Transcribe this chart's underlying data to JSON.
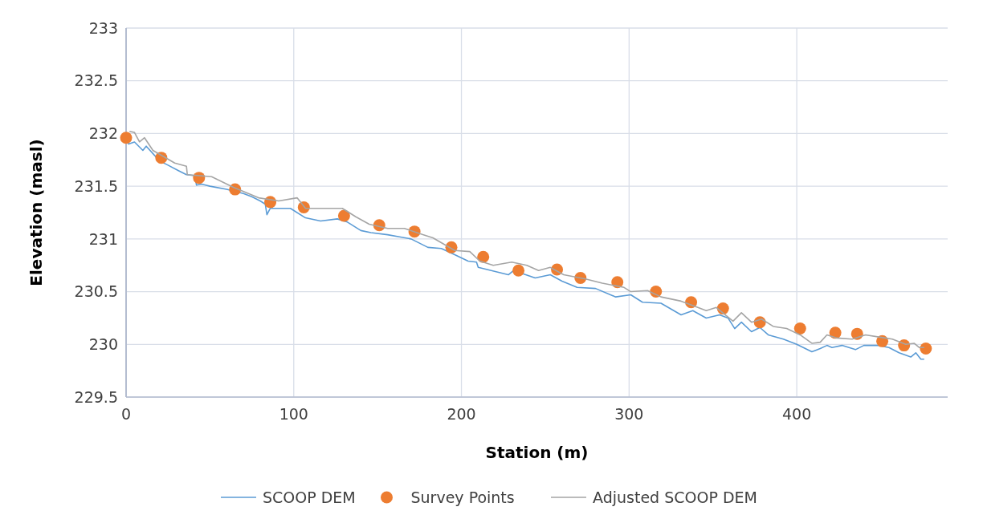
{
  "chart_data": {
    "type": "line",
    "xlabel": "Station (m)",
    "ylabel": "Elevation (masl)",
    "xlim": [
      0,
      490
    ],
    "ylim": [
      229.5,
      233
    ],
    "xticks": [
      0,
      100,
      200,
      300,
      400
    ],
    "yticks": [
      229.5,
      230,
      230.5,
      231,
      231.5,
      232,
      232.5,
      233
    ],
    "grid": true,
    "legend": "bottom",
    "series": [
      {
        "name": "SCOOP DEM",
        "color": "#5b9bd5",
        "x": [
          0,
          1.5,
          5,
          10,
          12,
          20,
          25,
          31,
          36,
          41,
          42,
          45,
          50,
          60,
          70,
          75,
          80,
          83,
          84,
          86,
          98,
          107,
          116,
          126,
          132,
          140,
          146,
          156,
          163,
          170,
          180,
          188,
          196,
          204,
          209,
          210,
          228,
          231,
          244,
          253,
          260,
          269,
          280,
          292,
          301,
          308,
          319,
          331,
          338,
          346,
          354,
          359,
          363,
          367,
          373,
          378,
          383,
          392,
          400,
          409,
          414,
          418,
          421,
          427,
          435,
          440,
          449,
          455,
          461,
          468,
          471,
          474,
          476
        ],
        "values": [
          231.93,
          231.9,
          231.92,
          231.84,
          231.88,
          231.74,
          231.7,
          231.65,
          231.61,
          231.6,
          231.51,
          231.52,
          231.5,
          231.47,
          231.43,
          231.4,
          231.36,
          231.33,
          231.23,
          231.29,
          231.29,
          231.2,
          231.17,
          231.19,
          231.16,
          231.08,
          231.06,
          231.04,
          231.02,
          231.0,
          230.92,
          230.91,
          230.85,
          230.79,
          230.78,
          230.73,
          230.66,
          230.7,
          230.63,
          230.66,
          230.6,
          230.54,
          230.53,
          230.45,
          230.47,
          230.4,
          230.39,
          230.28,
          230.32,
          230.25,
          230.28,
          230.25,
          230.15,
          230.21,
          230.12,
          230.16,
          230.09,
          230.05,
          230.0,
          229.93,
          229.96,
          229.99,
          229.97,
          229.99,
          229.95,
          229.99,
          229.99,
          229.97,
          229.92,
          229.88,
          229.92,
          229.86,
          229.86
        ]
      },
      {
        "name": "Survey Points",
        "type": "scatter",
        "marker": "circle",
        "color": "#ed7d31",
        "x": [
          0,
          21,
          43.5,
          65,
          86,
          106,
          130,
          151,
          172,
          194,
          213,
          234,
          257,
          271,
          293,
          316,
          337,
          356,
          378,
          402,
          423,
          436,
          451,
          464,
          477
        ],
        "values": [
          231.96,
          231.77,
          231.58,
          231.47,
          231.35,
          231.3,
          231.22,
          231.13,
          231.07,
          230.92,
          230.83,
          230.7,
          230.71,
          230.63,
          230.59,
          230.5,
          230.4,
          230.34,
          230.21,
          230.15,
          230.11,
          230.1,
          230.03,
          229.99,
          229.96
        ]
      },
      {
        "name": "Adjusted SCOOP DEM",
        "color": "#a5a5a5",
        "x": [
          2,
          5,
          8,
          11,
          16,
          29,
          36,
          36.5,
          51,
          64,
          79,
          91,
          102,
          107,
          129,
          137,
          145,
          156,
          166,
          177,
          183,
          196,
          205,
          211,
          219,
          230,
          239,
          246,
          253,
          261,
          274,
          284,
          297,
          301,
          311,
          319,
          331,
          341,
          346,
          352,
          362,
          367,
          373,
          379,
          386,
          394,
          402,
          409,
          414,
          418,
          424,
          433,
          441,
          449,
          457,
          465,
          470,
          473,
          476
        ],
        "values": [
          232.02,
          232.01,
          231.92,
          231.96,
          231.84,
          231.72,
          231.69,
          231.61,
          231.59,
          231.49,
          231.39,
          231.36,
          231.39,
          231.29,
          231.29,
          231.21,
          231.14,
          231.1,
          231.1,
          231.04,
          231.01,
          230.89,
          230.88,
          230.79,
          230.75,
          230.78,
          230.75,
          230.7,
          230.73,
          230.66,
          230.62,
          230.58,
          230.54,
          230.5,
          230.51,
          230.45,
          230.41,
          230.35,
          230.32,
          230.35,
          230.22,
          230.3,
          230.21,
          230.24,
          230.17,
          230.15,
          230.09,
          230.01,
          230.02,
          230.09,
          230.06,
          230.05,
          230.09,
          230.07,
          230.05,
          230.0,
          230.01,
          229.97,
          229.97
        ]
      }
    ]
  }
}
